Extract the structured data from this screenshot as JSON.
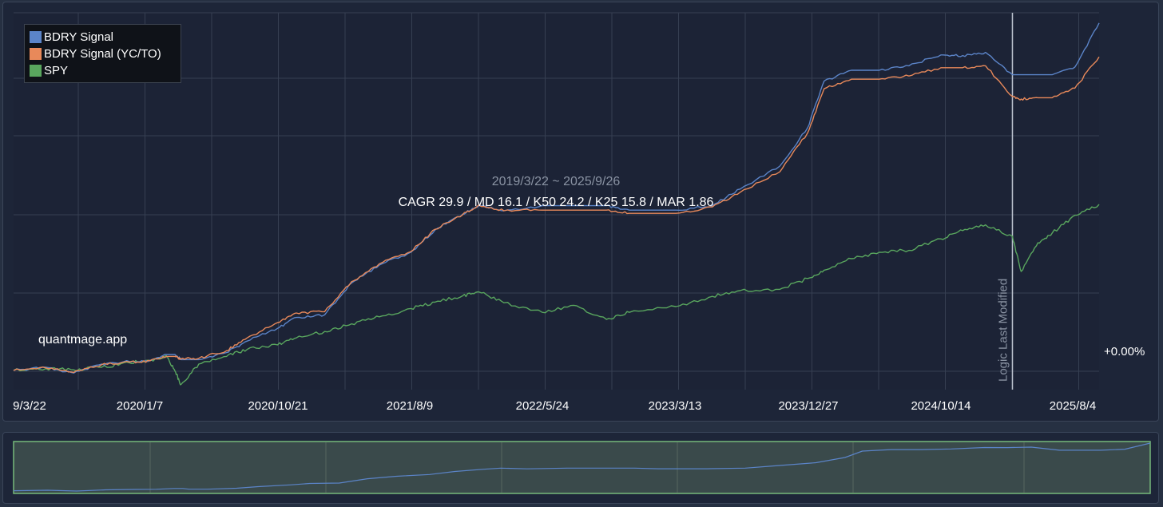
{
  "chart_data": {
    "type": "line",
    "date_range_label": "2019/3/22 ~ 2025/9/26",
    "stats_label": "CAGR 29.9 / MD 16.1 / K50 24.2 / K25 15.8 / MAR 1.86",
    "watermark": "quantmage.app",
    "baseline_label": "+0.00%",
    "annotation_label": "Logic Last Modified",
    "annotation_date": "2025/3/20",
    "x_tick_labels": [
      "9/3/22",
      "2020/1/7",
      "2020/10/21",
      "2021/8/9",
      "2022/5/24",
      "2023/3/13",
      "2023/12/27",
      "2024/10/14",
      "2025/8/4"
    ],
    "x": [
      "2019/3/22",
      "2019/6/1",
      "2019/8/1",
      "2019/10/1",
      "2019/12/1",
      "2020/1/15",
      "2020/2/20",
      "2020/3/10",
      "2020/3/23",
      "2020/5/1",
      "2020/7/1",
      "2020/8/15",
      "2020/10/21",
      "2020/12/1",
      "2021/2/1",
      "2021/4/1",
      "2021/6/1",
      "2021/8/9",
      "2021/10/1",
      "2021/12/1",
      "2022/1/5",
      "2022/3/1",
      "2022/5/24",
      "2022/8/1",
      "2022/10/12",
      "2022/12/1",
      "2023/3/13",
      "2023/6/1",
      "2023/8/1",
      "2023/10/27",
      "2023/12/27",
      "2024/2/1",
      "2024/4/1",
      "2024/6/1",
      "2024/8/5",
      "2024/10/14",
      "2024/12/1",
      "2025/1/20",
      "2025/3/20",
      "2025/4/8",
      "2025/5/15",
      "2025/6/15",
      "2025/8/4",
      "2025/9/26"
    ],
    "series": [
      {
        "name": "BDRY Signal",
        "color": "#5b84c8",
        "values": [
          0,
          5,
          -4,
          10,
          14,
          16,
          25,
          25,
          17,
          17,
          28,
          46,
          66,
          83,
          87,
          137,
          165,
          185,
          220,
          245,
          258,
          250,
          258,
          258,
          258,
          251,
          251,
          258,
          284,
          320,
          380,
          453,
          470,
          470,
          477,
          494,
          493,
          498,
          463,
          463,
          463,
          463,
          475,
          544
        ]
      },
      {
        "name": "BDRY Signal (YC/TO)",
        "color": "#e8895a",
        "values": [
          0,
          4,
          -3,
          9,
          13,
          15,
          22,
          22,
          18,
          19,
          31,
          51,
          75,
          90,
          92,
          139,
          167,
          186,
          221,
          244,
          259,
          250,
          251,
          251,
          251,
          246,
          246,
          256,
          279,
          311,
          372,
          441,
          456,
          456,
          461,
          474,
          474,
          477,
          429,
          425,
          427,
          427,
          442,
          491
        ]
      },
      {
        "name": "SPY",
        "color": "#59a65e",
        "values": [
          0,
          3,
          1,
          5,
          12,
          16,
          23,
          -1,
          -22,
          10,
          22,
          33,
          40,
          51,
          61,
          73,
          84,
          97,
          107,
          117,
          123,
          106,
          91,
          102,
          80,
          91,
          100,
          116,
          125,
          127,
          144,
          157,
          175,
          185,
          188,
          206,
          219,
          228,
          210,
          155,
          200,
          215,
          243,
          260
        ]
      }
    ],
    "ylim": [
      -30,
      560
    ],
    "grid": true,
    "legend": "top-left",
    "navigator": true
  }
}
